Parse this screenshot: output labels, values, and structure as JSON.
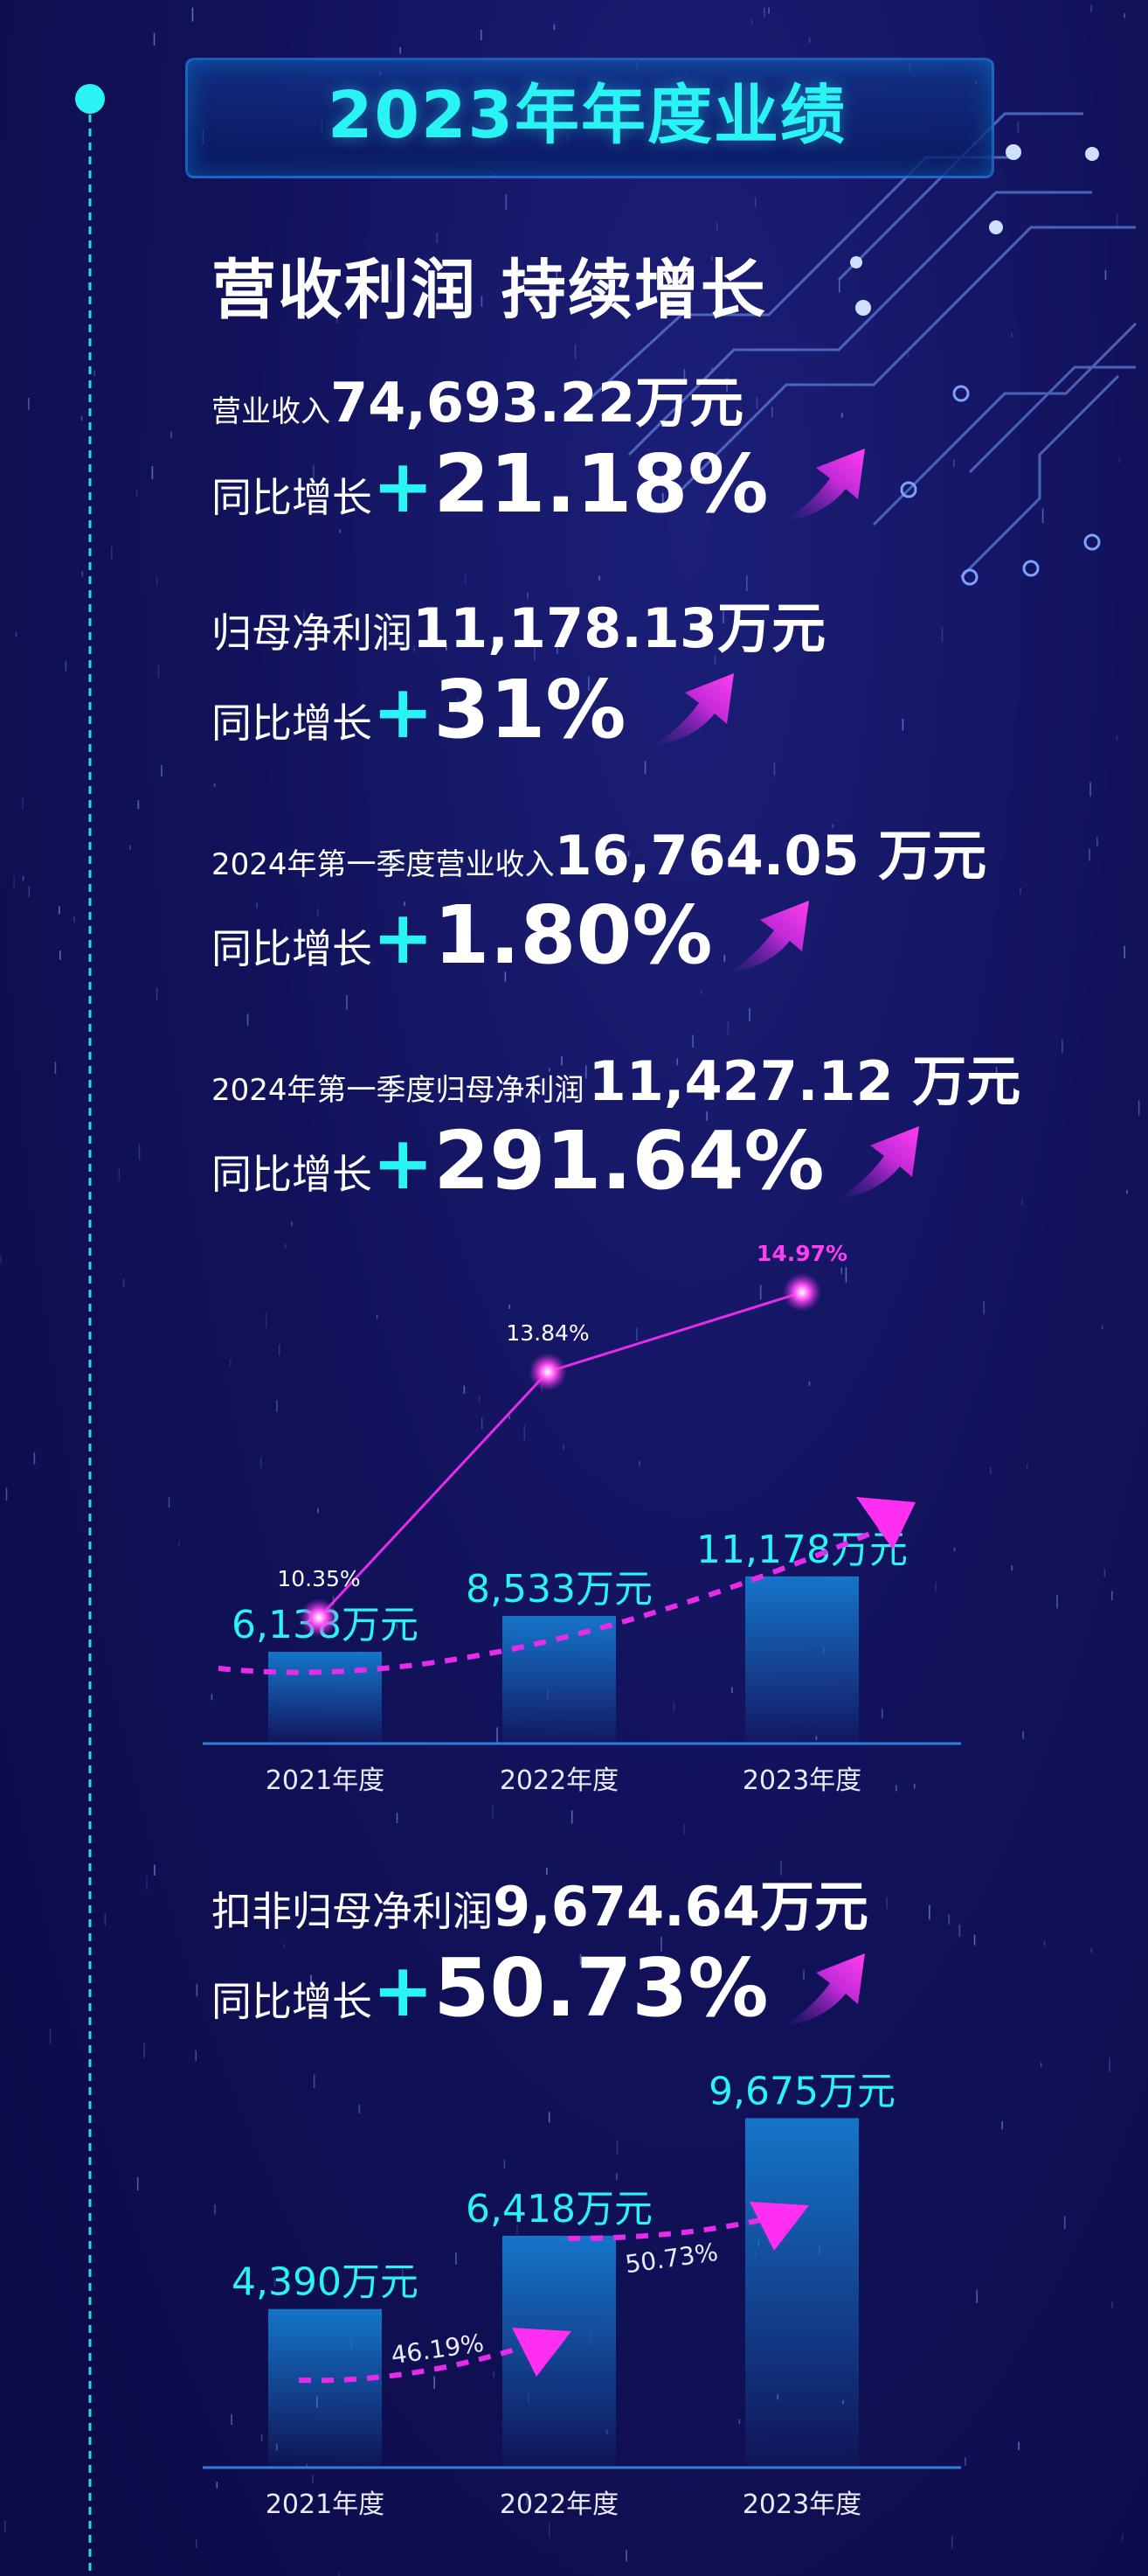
{
  "title": "2023年年度业绩",
  "headline": "营收利润 持续增长",
  "metrics": [
    {
      "label": "营业收入",
      "value": "74,693.22万元",
      "growth_label": "同比增长",
      "growth_plus": "+",
      "growth_value": "21.18%"
    },
    {
      "label": "归母净利润",
      "value": "11,178.13万元",
      "growth_label": "同比增长",
      "growth_plus": "+",
      "growth_value": "31%"
    },
    {
      "label": "2024年第一季度营业收入",
      "value": "16,764.05 万元",
      "growth_label": "同比增长",
      "growth_plus": "+",
      "growth_value": "1.80%"
    },
    {
      "label": "2024年第一季度归母净利润",
      "value": "11,427.12 万元",
      "growth_label": "同比增长",
      "growth_plus": "+",
      "growth_value": "291.64%"
    }
  ],
  "metric2": {
    "label": "扣非归母净利润",
    "value": "9,674.64万元",
    "growth_label": "同比增长",
    "growth_plus": "+",
    "growth_value": "50.73%"
  },
  "colors": {
    "accent": "#2af3f3",
    "magenta": "#e62bea",
    "bar_top": "#1575c9",
    "background": "#12125c"
  },
  "chart_data": [
    {
      "type": "bar",
      "categories": [
        "2021年度",
        "2022年度",
        "2023年度"
      ],
      "values": [
        6138,
        8533,
        11178
      ],
      "bar_labels": [
        "6,138万元",
        "8,533万元",
        "11,178万元"
      ],
      "line_values": [
        10.35,
        13.84,
        14.97
      ],
      "line_labels": [
        "10.35%",
        "13.84%",
        "14.97%"
      ],
      "title": "",
      "xlabel": "",
      "ylabel": ""
    },
    {
      "type": "bar",
      "categories": [
        "2021年度",
        "2022年度",
        "2023年度"
      ],
      "values": [
        4390,
        6418,
        9675
      ],
      "bar_labels": [
        "4,390万元",
        "6,418万元",
        "9,675万元"
      ],
      "growth_labels": [
        "46.19%",
        "50.73%"
      ],
      "title": "",
      "xlabel": "",
      "ylabel": ""
    }
  ]
}
